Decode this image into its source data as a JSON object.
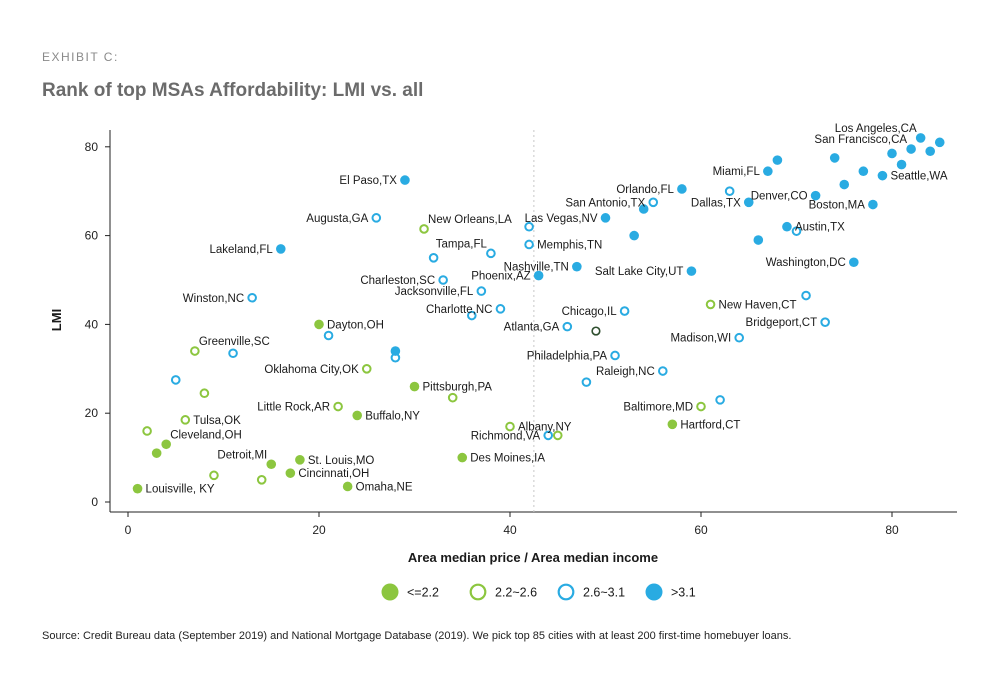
{
  "exhibit": "EXHIBIT C:",
  "source": "Source: Credit Bureau data (September 2019) and National Mortgage Database (2019). We pick top 85 cities with at least 200 first-time homebuyer loans.",
  "colors": {
    "green": "#8cc63f",
    "blue": "#29abe2",
    "dark": "#2f4f2f",
    "vline": "#c8c8c8"
  },
  "chart_data": {
    "type": "scatter",
    "title": "Rank of top MSAs Affordability: LMI vs. all",
    "xlabel": "Area median price / Area median income",
    "ylabel": "LMI",
    "xlim": [
      -1,
      86
    ],
    "ylim": [
      0,
      87
    ],
    "xticks": [
      0,
      20,
      40,
      60,
      80
    ],
    "yticks": [
      0,
      20,
      40,
      60,
      80
    ],
    "reference_x": 42.5,
    "legend": [
      {
        "key": "g1",
        "label": "<=2.2"
      },
      {
        "key": "g2",
        "label": "2.2~2.6"
      },
      {
        "key": "g3",
        "label": "2.6~3.1"
      },
      {
        "key": "g4",
        "label": ">3.1"
      }
    ],
    "points": [
      {
        "x": 1,
        "y": 3,
        "g": "g1",
        "label": "Louisville, KY",
        "pos": "r"
      },
      {
        "x": 3,
        "y": 11,
        "g": "g1"
      },
      {
        "x": 4,
        "y": 13,
        "g": "g1",
        "label": "Cleveland,OH",
        "pos": "ur"
      },
      {
        "x": 15,
        "y": 8.5,
        "g": "g1",
        "label": "Detroit,MI",
        "pos": "ul"
      },
      {
        "x": 17,
        "y": 6.5,
        "g": "g1",
        "label": "Cincinnati,OH",
        "pos": "r"
      },
      {
        "x": 18,
        "y": 9.5,
        "g": "g1",
        "label": "St. Louis,MO",
        "pos": "r"
      },
      {
        "x": 23,
        "y": 3.5,
        "g": "g1",
        "label": "Omaha,NE",
        "pos": "r"
      },
      {
        "x": 24,
        "y": 19.5,
        "g": "g1",
        "label": "Buffalo,NY",
        "pos": "r"
      },
      {
        "x": 20,
        "y": 40,
        "g": "g1",
        "label": "Dayton,OH",
        "pos": "r"
      },
      {
        "x": 30,
        "y": 26,
        "g": "g1",
        "label": "Pittsburgh,PA",
        "pos": "r"
      },
      {
        "x": 35,
        "y": 10,
        "g": "g1",
        "label": "Des Moines,IA",
        "pos": "r"
      },
      {
        "x": 57,
        "y": 17.5,
        "g": "g1",
        "label": "Hartford,CT",
        "pos": "r"
      },
      {
        "x": 2,
        "y": 16,
        "g": "g2"
      },
      {
        "x": 6,
        "y": 18.5,
        "g": "g2",
        "label": "Tulsa,OK",
        "pos": "r"
      },
      {
        "x": 7,
        "y": 34,
        "g": "g2",
        "label": "Greenville,SC",
        "pos": "ur"
      },
      {
        "x": 8,
        "y": 24.5,
        "g": "g2"
      },
      {
        "x": 9,
        "y": 6,
        "g": "g2"
      },
      {
        "x": 14,
        "y": 5,
        "g": "g2"
      },
      {
        "x": 22,
        "y": 21.5,
        "g": "g2",
        "label": "Little Rock,AR",
        "pos": "l"
      },
      {
        "x": 25,
        "y": 30,
        "g": "g2",
        "label": "Oklahoma City,OK",
        "pos": "l"
      },
      {
        "x": 31,
        "y": 61.5,
        "g": "g2",
        "label": "New Orleans,LA",
        "pos": "ur"
      },
      {
        "x": 34,
        "y": 23.5,
        "g": "g2"
      },
      {
        "x": 40,
        "y": 17,
        "g": "g2",
        "label": "Albany,NY",
        "pos": "r"
      },
      {
        "x": 45,
        "y": 15,
        "g": "g2"
      },
      {
        "x": 60,
        "y": 21.5,
        "g": "g2",
        "label": "Baltimore,MD",
        "pos": "l"
      },
      {
        "x": 61,
        "y": 44.5,
        "g": "g2",
        "label": "New Haven,CT",
        "pos": "r"
      },
      {
        "x": 5,
        "y": 27.5,
        "g": "g3"
      },
      {
        "x": 11,
        "y": 33.5,
        "g": "g3"
      },
      {
        "x": 13,
        "y": 46,
        "g": "g3",
        "label": "Winston,NC",
        "pos": "l"
      },
      {
        "x": 21,
        "y": 37.5,
        "g": "g3"
      },
      {
        "x": 26,
        "y": 64,
        "g": "g3",
        "label": "Augusta,GA",
        "pos": "l"
      },
      {
        "x": 28,
        "y": 32.5,
        "g": "g3"
      },
      {
        "x": 32,
        "y": 55,
        "g": "g3"
      },
      {
        "x": 33,
        "y": 50,
        "g": "g3",
        "label": "Charleston,SC",
        "pos": "l"
      },
      {
        "x": 36,
        "y": 42,
        "g": "g3"
      },
      {
        "x": 37,
        "y": 47.5,
        "g": "g3",
        "label": "Jacksonville,FL",
        "pos": "l"
      },
      {
        "x": 38,
        "y": 56,
        "g": "g3",
        "label": "Tampa,FL",
        "pos": "ul"
      },
      {
        "x": 39,
        "y": 43.5,
        "g": "g3",
        "label": "Charlotte,NC",
        "pos": "l"
      },
      {
        "x": 42,
        "y": 62,
        "g": "g3"
      },
      {
        "x": 42,
        "y": 58,
        "g": "g3",
        "label": "Memphis,TN",
        "pos": "r"
      },
      {
        "x": 44,
        "y": 15,
        "g": "g3",
        "label": "Richmond,VA",
        "pos": "l"
      },
      {
        "x": 46,
        "y": 39.5,
        "g": "g3",
        "label": "Atlanta,GA",
        "pos": "l"
      },
      {
        "x": 48,
        "y": 27,
        "g": "g3"
      },
      {
        "x": 51,
        "y": 33,
        "g": "g3",
        "label": "Philadelphia,PA",
        "pos": "l"
      },
      {
        "x": 52,
        "y": 43,
        "g": "g3",
        "label": "Chicago,IL",
        "pos": "l"
      },
      {
        "x": 55,
        "y": 67.5,
        "g": "g3",
        "label": "San Antonio,TX",
        "pos": "l"
      },
      {
        "x": 56,
        "y": 29.5,
        "g": "g3",
        "label": "Raleigh,NC",
        "pos": "l"
      },
      {
        "x": 62,
        "y": 23,
        "g": "g3"
      },
      {
        "x": 63,
        "y": 70,
        "g": "g3"
      },
      {
        "x": 64,
        "y": 37,
        "g": "g3",
        "label": "Madison,WI",
        "pos": "l"
      },
      {
        "x": 70,
        "y": 61,
        "g": "g3"
      },
      {
        "x": 71,
        "y": 46.5,
        "g": "g3"
      },
      {
        "x": 73,
        "y": 40.5,
        "g": "g3",
        "label": "Bridgeport,CT",
        "pos": "l"
      },
      {
        "x": 49,
        "y": 38.5,
        "g": "dark"
      },
      {
        "x": 16,
        "y": 57,
        "g": "g4",
        "label": "Lakeland,FL",
        "pos": "l"
      },
      {
        "x": 28,
        "y": 34,
        "g": "g4"
      },
      {
        "x": 29,
        "y": 72.5,
        "g": "g4",
        "label": "El Paso,TX",
        "pos": "l"
      },
      {
        "x": 43,
        "y": 51,
        "g": "g4",
        "label": "Phoenix,AZ",
        "pos": "l"
      },
      {
        "x": 47,
        "y": 53,
        "g": "g4",
        "label": "Nashville,TN",
        "pos": "l"
      },
      {
        "x": 50,
        "y": 64,
        "g": "g4",
        "label": "Las Vegas,NV",
        "pos": "l"
      },
      {
        "x": 53,
        "y": 60,
        "g": "g4"
      },
      {
        "x": 54,
        "y": 66,
        "g": "g4"
      },
      {
        "x": 58,
        "y": 70.5,
        "g": "g4",
        "label": "Orlando,FL",
        "pos": "l"
      },
      {
        "x": 59,
        "y": 52,
        "g": "g4",
        "label": "Salt Lake City,UT",
        "pos": "l"
      },
      {
        "x": 65,
        "y": 67.5,
        "g": "g4",
        "label": "Dallas,TX",
        "pos": "l"
      },
      {
        "x": 66,
        "y": 59,
        "g": "g4"
      },
      {
        "x": 67,
        "y": 74.5,
        "g": "g4",
        "label": "Miami,FL",
        "pos": "l"
      },
      {
        "x": 68,
        "y": 77,
        "g": "g4"
      },
      {
        "x": 69,
        "y": 62,
        "g": "g4",
        "label": "Austin,TX",
        "pos": "r"
      },
      {
        "x": 72,
        "y": 69,
        "g": "g4",
        "label": "Denver,CO",
        "pos": "l"
      },
      {
        "x": 74,
        "y": 77.5,
        "g": "g4"
      },
      {
        "x": 75,
        "y": 71.5,
        "g": "g4"
      },
      {
        "x": 76,
        "y": 54,
        "g": "g4",
        "label": "Washington,DC",
        "pos": "l"
      },
      {
        "x": 77,
        "y": 74.5,
        "g": "g4"
      },
      {
        "x": 78,
        "y": 67,
        "g": "g4",
        "label": "Boston,MA",
        "pos": "l"
      },
      {
        "x": 79,
        "y": 73.5,
        "g": "g4",
        "label": "Seattle,WA",
        "pos": "r"
      },
      {
        "x": 80,
        "y": 78.5,
        "g": "g4"
      },
      {
        "x": 81,
        "y": 76,
        "g": "g4"
      },
      {
        "x": 82,
        "y": 79.5,
        "g": "g4",
        "label": "San Francisco,CA",
        "pos": "ul"
      },
      {
        "x": 83,
        "y": 82,
        "g": "g4",
        "label": "Los Angeles,CA",
        "pos": "ul"
      },
      {
        "x": 84,
        "y": 79,
        "g": "g4"
      },
      {
        "x": 85,
        "y": 81,
        "g": "g4"
      }
    ]
  }
}
